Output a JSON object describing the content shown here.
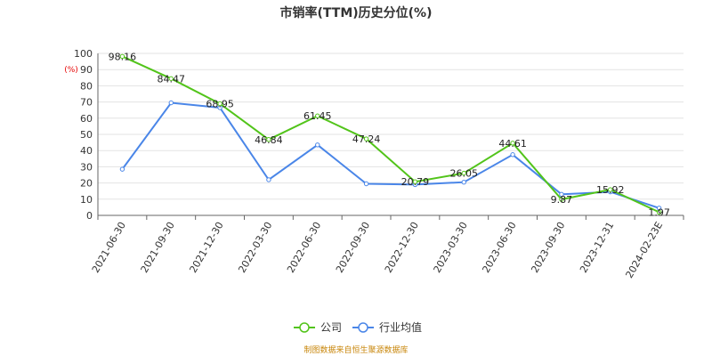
{
  "chart_data": {
    "type": "line",
    "title": "市销率(TTM)历史分位(%)",
    "y_unit": "(%)",
    "ylim": [
      0,
      100
    ],
    "y_ticks": [
      0,
      10,
      20,
      30,
      40,
      50,
      60,
      70,
      80,
      90,
      100
    ],
    "grid": true,
    "legend_position": "bottom",
    "categories": [
      "2021-06-30",
      "2021-09-30",
      "2021-12-30",
      "2022-03-30",
      "2022-06-30",
      "2022-09-30",
      "2022-12-30",
      "2023-03-30",
      "2023-06-30",
      "2023-09-30",
      "2023-12-31",
      "2024-02-23E"
    ],
    "series": [
      {
        "name": "公司",
        "color": "#52c41a",
        "values": [
          98.16,
          84.47,
          68.95,
          46.84,
          61.45,
          47.24,
          20.79,
          26.05,
          44.61,
          9.87,
          15.92,
          1.97
        ],
        "labels": [
          "98.16",
          "84.47",
          "68.95",
          "46.84",
          "61.45",
          "47.24",
          "20.79",
          "26.05",
          "44.61",
          "9.87",
          "15.92",
          "1.97"
        ]
      },
      {
        "name": "行业均值",
        "color": "#4a86e8",
        "values": [
          28.5,
          69.5,
          66.5,
          22,
          43.5,
          19.5,
          19,
          20.5,
          37.5,
          13,
          14.5,
          4.5
        ]
      }
    ],
    "source": "制图数据来自恒生聚源数据库"
  }
}
